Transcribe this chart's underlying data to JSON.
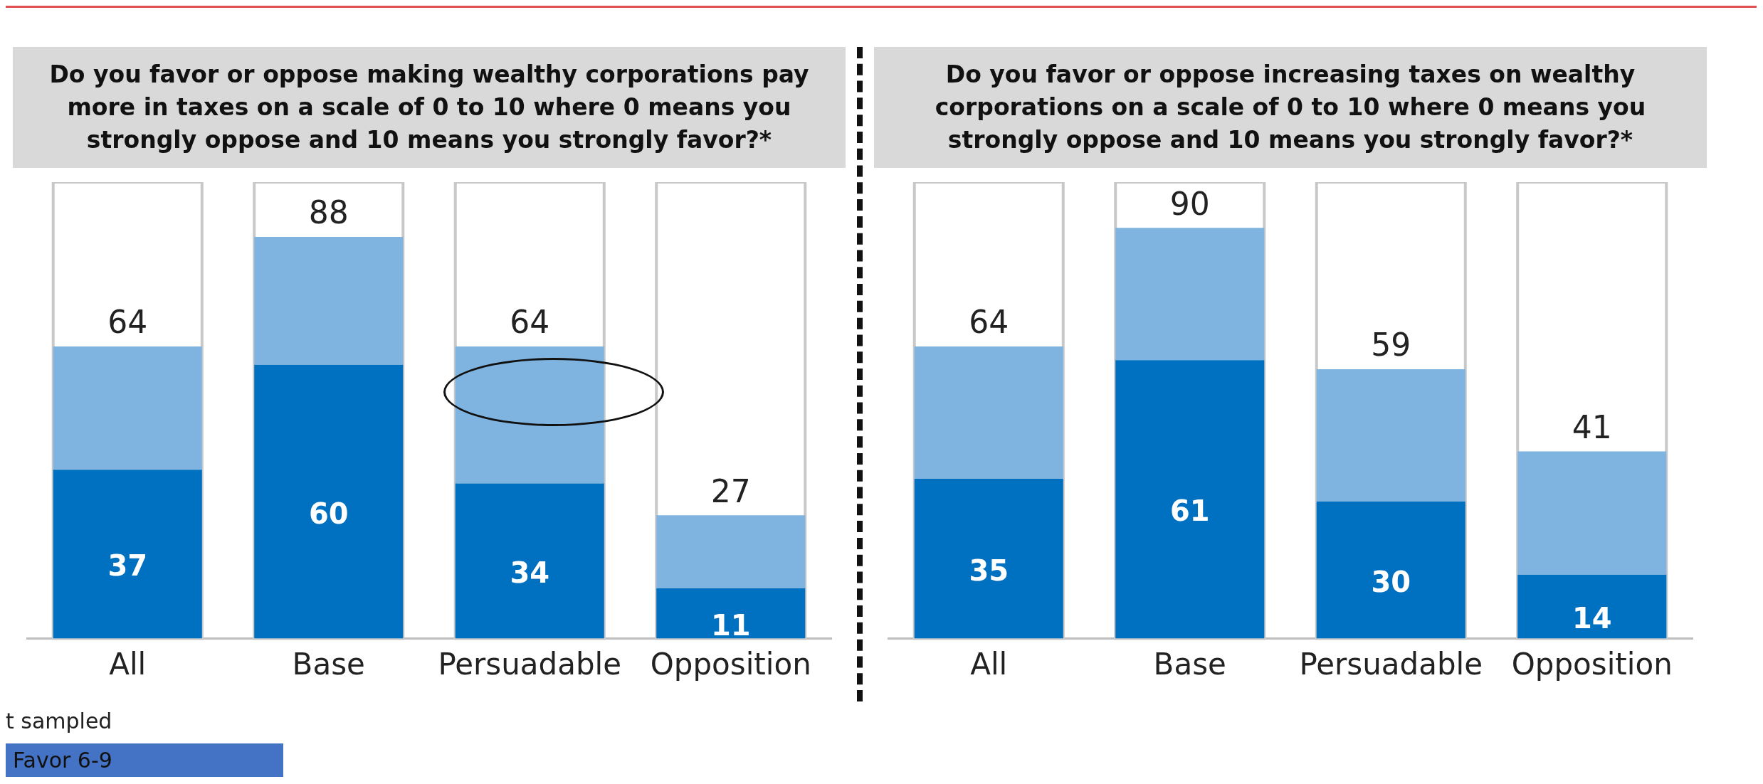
{
  "chart_data": [
    {
      "type": "bar",
      "title": "Do you favor or oppose making wealthy corporations pay more in taxes on a scale of 0 to 10 where 0 means you strongly oppose and 10 means you strongly favor?*",
      "categories": [
        "All",
        "Base",
        "Persuadable",
        "Opposition"
      ],
      "stacked": true,
      "ylim": [
        0,
        100
      ],
      "tick_labels": "x",
      "grid": false,
      "legend": false,
      "series": [
        {
          "color": "#0070c0",
          "values": [
            37,
            60,
            34,
            11
          ],
          "value_labels": [
            "37",
            "60",
            "34",
            "11"
          ]
        },
        {
          "color": "#7fb4e0",
          "values": [
            27,
            28,
            30,
            16
          ]
        }
      ],
      "totals": [
        "64",
        "88",
        "64",
        "27"
      ],
      "annotations": [
        "t sampled",
        "Favor 6-9"
      ]
    },
    {
      "type": "bar",
      "title": "Do you favor or oppose increasing taxes on wealthy corporations on a scale of 0 to 10 where 0 means you strongly oppose and 10 means you strongly favor?*",
      "categories": [
        "All",
        "Base",
        "Persuadable",
        "Opposition"
      ],
      "stacked": true,
      "ylim": [
        0,
        100
      ],
      "tick_labels": "x",
      "grid": false,
      "legend": false,
      "series": [
        {
          "color": "#0070c0",
          "values": [
            35,
            61,
            30,
            14
          ],
          "value_labels": [
            "35",
            "61",
            "30",
            "14"
          ]
        },
        {
          "color": "#7fb4e0",
          "values": [
            29,
            29,
            29,
            27
          ]
        }
      ],
      "totals": [
        "64",
        "90",
        "59",
        "41"
      ]
    }
  ]
}
